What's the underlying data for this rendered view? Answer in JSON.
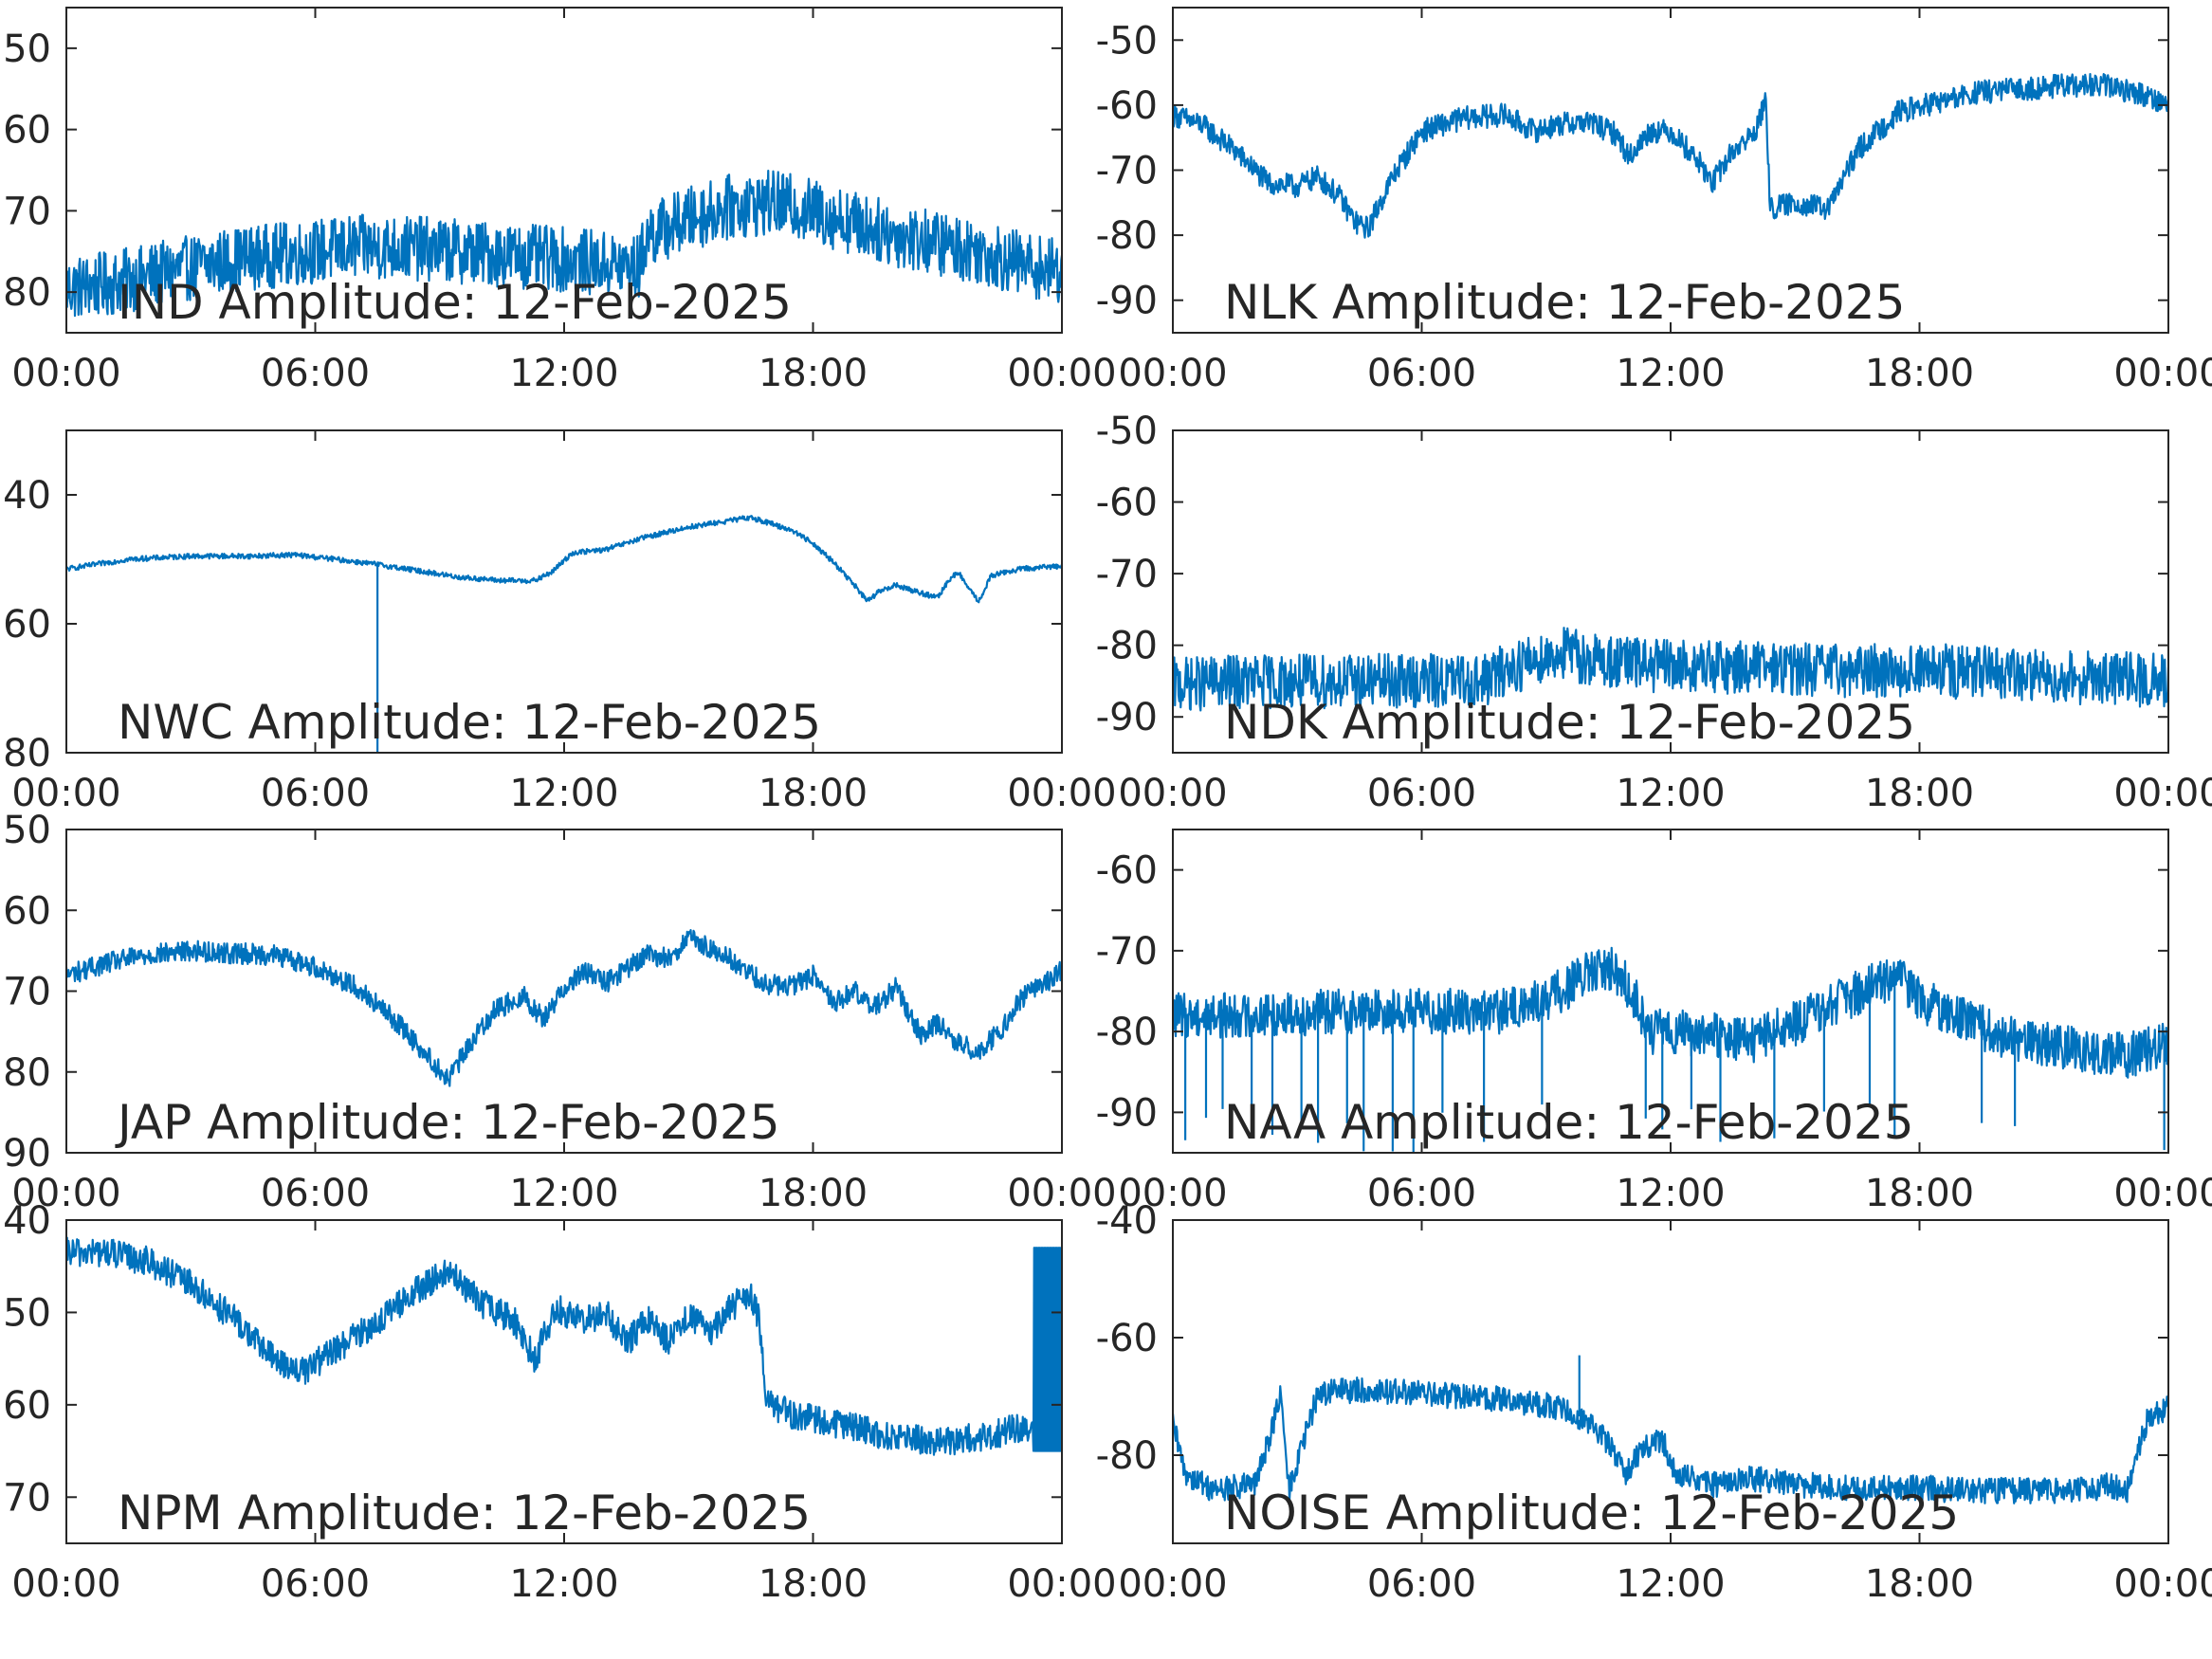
{
  "figure": {
    "line_color": "#0072BD",
    "axis_color": "#262626",
    "background": "#ffffff"
  },
  "chart_data": [
    {
      "type": "line",
      "title": "IND Amplitude: 12-Feb-2025",
      "xlim_hours": [
        0,
        24
      ],
      "ylim": [
        -85,
        -45
      ],
      "yticks": [
        -80,
        -70,
        -60,
        -50
      ],
      "ytick_labels": [
        "80",
        "70",
        "60",
        "50"
      ],
      "xticks_hours": [
        0,
        6,
        12,
        18,
        24
      ],
      "xtick_labels": [
        "00:00",
        "06:00",
        "12:00",
        "18:00",
        "00:00"
      ],
      "series": [
        {
          "x_hours": [
            0,
            1,
            2,
            3,
            4,
            5,
            6,
            7,
            8,
            9,
            10,
            11,
            12,
            13,
            13.8,
            14,
            15,
            16,
            17,
            18,
            19,
            20,
            21,
            22,
            23,
            24
          ],
          "values": [
            -79.5,
            -79,
            -78,
            -77,
            -76,
            -75.5,
            -75,
            -74.5,
            -74.5,
            -74.8,
            -75.2,
            -75.6,
            -76,
            -76.5,
            -77,
            -73,
            -71,
            -69.5,
            -69,
            -70,
            -71.5,
            -73,
            -74,
            -75,
            -76.5,
            -77.5
          ],
          "noise": 4
        }
      ]
    },
    {
      "type": "line",
      "title": "NLK Amplitude: 12-Feb-2025",
      "xlim_hours": [
        0,
        24
      ],
      "ylim": [
        -95,
        -45
      ],
      "yticks": [
        -90,
        -80,
        -70,
        -60,
        -50
      ],
      "ytick_labels": [
        "-90",
        "-80",
        "-70",
        "-60",
        "-50"
      ],
      "xticks_hours": [
        0,
        6,
        12,
        18,
        24
      ],
      "xtick_labels": [
        "00:00",
        "06:00",
        "12:00",
        "18:00",
        "00:00"
      ],
      "series": [
        {
          "x_hours": [
            0,
            0.7,
            1.5,
            2.3,
            3,
            3.5,
            4,
            4.4,
            4.7,
            5.3,
            6,
            7,
            8,
            8.7,
            9.3,
            10,
            10.7,
            11,
            11.5,
            12,
            12.6,
            13,
            13.5,
            14,
            14.3,
            14.4,
            15,
            15.8,
            16.5,
            17.5,
            18.5,
            19.5,
            20.5,
            21.5,
            22.5,
            23.5,
            24
          ],
          "values": [
            -61.5,
            -63,
            -67,
            -72,
            -72.5,
            -71,
            -74,
            -78,
            -79,
            -71,
            -64,
            -62,
            -61.5,
            -64,
            -63,
            -62.5,
            -64.5,
            -68,
            -64,
            -64,
            -68,
            -72,
            -67,
            -64.5,
            -59.5,
            -76,
            -75,
            -76,
            -67,
            -61,
            -59.5,
            -58,
            -57.5,
            -57,
            -57,
            -58.5,
            -60
          ],
          "noise": 1.8
        }
      ]
    },
    {
      "type": "line",
      "title": "NWC Amplitude: 12-Feb-2025",
      "xlim_hours": [
        0,
        24
      ],
      "ylim": [
        -80,
        -30
      ],
      "yticks": [
        -80,
        -60,
        -40
      ],
      "ytick_labels": [
        "80",
        "60",
        "40"
      ],
      "xticks_hours": [
        0,
        6,
        12,
        18,
        24
      ],
      "xtick_labels": [
        "00:00",
        "06:00",
        "12:00",
        "18:00",
        "00:00"
      ],
      "series": [
        {
          "x_hours": [
            0,
            1.5,
            3,
            4.5,
            5.5,
            6.5,
            7.5,
            8.5,
            9.5,
            10.5,
            11.3,
            11.7,
            12.2,
            13,
            14,
            15,
            16,
            16.5,
            17,
            17.5,
            18,
            18.5,
            19,
            19.3,
            19.6,
            20,
            20.5,
            21,
            21.3,
            21.5,
            21.8,
            22,
            22.3,
            23,
            24
          ],
          "values": [
            -51.5,
            -50,
            -49.5,
            -49.5,
            -49.3,
            -50,
            -50.8,
            -51.8,
            -52.8,
            -53.3,
            -53.3,
            -52,
            -49,
            -48.5,
            -46.5,
            -45,
            -44,
            -43.5,
            -44.5,
            -45.5,
            -47.5,
            -50.5,
            -54,
            -56.5,
            -55,
            -54,
            -55,
            -56,
            -53,
            -52,
            -55,
            -56.5,
            -52.5,
            -51.5,
            -51
          ],
          "noise": 0.4,
          "spike": {
            "x_hours": 7.5,
            "to": -80
          }
        }
      ]
    },
    {
      "type": "line",
      "title": "NDK Amplitude: 12-Feb-2025",
      "xlim_hours": [
        0,
        24
      ],
      "ylim": [
        -95,
        -50
      ],
      "yticks": [
        -90,
        -80,
        -70,
        -60,
        -50
      ],
      "ytick_labels": [
        "-90",
        "-80",
        "-70",
        "-60",
        "-50"
      ],
      "xticks_hours": [
        0,
        6,
        12,
        18,
        24
      ],
      "xtick_labels": [
        "00:00",
        "06:00",
        "12:00",
        "18:00",
        "00:00"
      ],
      "series": [
        {
          "x_hours": [
            0,
            2,
            4,
            6,
            7.5,
            8.2,
            9,
            9.5,
            10,
            11,
            12,
            14,
            16,
            18,
            20,
            22,
            24
          ],
          "values": [
            -85.5,
            -85,
            -85,
            -85,
            -85,
            -83,
            -81.5,
            -81,
            -82,
            -82.5,
            -83,
            -83,
            -83.5,
            -83.5,
            -84,
            -84.5,
            -85
          ],
          "noise": 3.8
        }
      ]
    },
    {
      "type": "line",
      "title": "JAP Amplitude: 12-Feb-2025",
      "xlim_hours": [
        0,
        24
      ],
      "ylim": [
        -90,
        -50
      ],
      "yticks": [
        -90,
        -80,
        -70,
        -60,
        -50
      ],
      "ytick_labels": [
        "90",
        "80",
        "70",
        "60",
        "50"
      ],
      "xticks_hours": [
        0,
        6,
        12,
        18,
        24
      ],
      "xtick_labels": [
        "00:00",
        "06:00",
        "12:00",
        "18:00",
        "00:00"
      ],
      "series": [
        {
          "x_hours": [
            0,
            1,
            2,
            3,
            4,
            5,
            6,
            7,
            8,
            8.7,
            9.2,
            9.8,
            10.3,
            11,
            11.5,
            12,
            12.5,
            13,
            14,
            14.5,
            15,
            16,
            16.8,
            17.5,
            18,
            18.5,
            19,
            19.5,
            20,
            20.6,
            21,
            21.5,
            22,
            22.5,
            23,
            24
          ],
          "values": [
            -68,
            -66.5,
            -65.5,
            -65,
            -65.3,
            -65.5,
            -67,
            -69.5,
            -74,
            -78,
            -81,
            -76,
            -72.5,
            -70.5,
            -73.5,
            -69.5,
            -67.5,
            -69,
            -65.5,
            -66,
            -63.5,
            -66,
            -69,
            -69.5,
            -68,
            -71.5,
            -70,
            -72,
            -69.5,
            -75.5,
            -74,
            -76.5,
            -77.5,
            -75,
            -71,
            -67.5
          ],
          "noise": 1.3
        }
      ]
    },
    {
      "type": "line",
      "title": "NAA Amplitude: 12-Feb-2025",
      "xlim_hours": [
        0,
        24
      ],
      "ylim": [
        -95,
        -55
      ],
      "yticks": [
        -90,
        -80,
        -70,
        -60
      ],
      "ytick_labels": [
        "-90",
        "-80",
        "-70",
        "-60"
      ],
      "xticks_hours": [
        0,
        6,
        12,
        18,
        24
      ],
      "xtick_labels": [
        "00:00",
        "06:00",
        "12:00",
        "18:00",
        "00:00"
      ],
      "series": [
        {
          "x_hours": [
            0,
            2,
            4,
            6,
            8,
            9,
            10,
            10.5,
            11,
            11.5,
            12,
            13,
            14,
            15,
            16,
            17,
            17.5,
            18,
            19,
            20,
            21,
            22,
            23,
            24
          ],
          "values": [
            -78,
            -78,
            -77.5,
            -77.5,
            -77.5,
            -76,
            -73,
            -72,
            -74.5,
            -80,
            -80,
            -80.5,
            -81,
            -79,
            -76.5,
            -74,
            -73.5,
            -76,
            -78.5,
            -80.5,
            -81.5,
            -82.5,
            -83,
            -81.5
          ],
          "noise": 2.8,
          "dropouts_hours": [
            0.3,
            0.8,
            1.2,
            1.9,
            2.4,
            3.1,
            3.5,
            4.2,
            4.6,
            5.3,
            5.8,
            6.5,
            7.5,
            8.9,
            11.4,
            11.8,
            12.5,
            13.2,
            14.5,
            15.7,
            16.8,
            17.4,
            19.5,
            20.3,
            23.9
          ]
        }
      ]
    },
    {
      "type": "line",
      "title": "NPM Amplitude: 12-Feb-2025",
      "xlim_hours": [
        0,
        24
      ],
      "ylim": [
        -75,
        -40
      ],
      "yticks": [
        -70,
        -60,
        -50,
        -40
      ],
      "ytick_labels": [
        "70",
        "60",
        "50",
        "40"
      ],
      "xticks_hours": [
        0,
        6,
        12,
        18,
        24
      ],
      "xtick_labels": [
        "00:00",
        "06:00",
        "12:00",
        "18:00",
        "00:00"
      ],
      "series": [
        {
          "x_hours": [
            0,
            1,
            2,
            3,
            4,
            5,
            5.7,
            6.5,
            7.5,
            8.5,
            9.2,
            10,
            10.8,
            11.3,
            11.8,
            12.5,
            13,
            13.5,
            14,
            14.5,
            15,
            15.5,
            16,
            16.5,
            16.7,
            16.9,
            17.5,
            18,
            19,
            20,
            21,
            22,
            22.5,
            23,
            23.5,
            24
          ],
          "values": [
            -43.5,
            -43.5,
            -44.5,
            -47,
            -50.5,
            -55,
            -56.5,
            -54,
            -51,
            -47.5,
            -45.5,
            -49,
            -51,
            -55,
            -49.5,
            -51,
            -50,
            -53.5,
            -50.5,
            -53,
            -50,
            -52.5,
            -49.5,
            -48,
            -51,
            -60,
            -61,
            -61.5,
            -62.5,
            -63.5,
            -64,
            -63.5,
            -63,
            -62.5,
            -62,
            -62
          ],
          "noise": 1.6,
          "oscillation": {
            "from_hours": 23.3,
            "to_hours": 24,
            "low": -65,
            "high": -43
          }
        }
      ]
    },
    {
      "type": "line",
      "title": "NOISE Amplitude: 12-Feb-2025",
      "xlim_hours": [
        0,
        24
      ],
      "ylim": [
        -95,
        -40
      ],
      "yticks": [
        -80,
        -60,
        -40
      ],
      "ytick_labels": [
        "-80",
        "-60",
        "-40"
      ],
      "xticks_hours": [
        0,
        6,
        12,
        18,
        24
      ],
      "xtick_labels": [
        "00:00",
        "06:00",
        "12:00",
        "18:00",
        "00:00"
      ],
      "series": [
        {
          "x_hours": [
            0,
            0.3,
            1,
            2,
            2.6,
            2.8,
            3.5,
            4,
            5,
            6,
            7,
            8,
            9,
            9.5,
            10,
            10.5,
            10.9,
            11.3,
            11.8,
            12,
            12.5,
            13,
            14,
            15,
            16,
            17,
            18,
            19,
            20,
            21,
            22,
            22.5,
            23,
            23.5,
            24
          ],
          "values": [
            -75,
            -83,
            -86,
            -85,
            -70,
            -86,
            -69.5,
            -69,
            -69,
            -69.5,
            -70,
            -70.5,
            -71.5,
            -72.5,
            -74,
            -78,
            -83,
            -79,
            -77,
            -82,
            -84,
            -85,
            -84,
            -85,
            -85.5,
            -85.5,
            -85.5,
            -86,
            -86,
            -86,
            -86,
            -85,
            -86,
            -74,
            -72
          ],
          "noise": 2.2,
          "spike": {
            "x_hours": 9.8,
            "to": -63
          }
        }
      ]
    }
  ]
}
